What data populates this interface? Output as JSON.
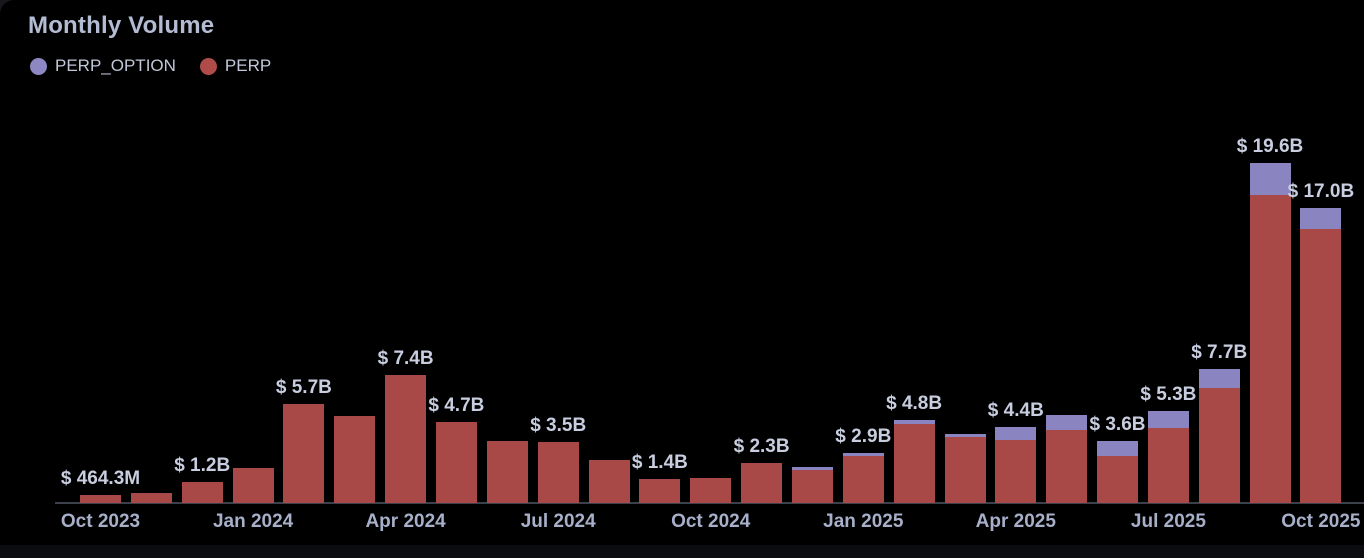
{
  "header": {
    "title": "Monthly Volume"
  },
  "legend": {
    "items": [
      {
        "label": "PERP_OPTION",
        "color": "#8d87c4"
      },
      {
        "label": "PERP",
        "color": "#af4c4a"
      }
    ]
  },
  "chart_data": {
    "type": "bar",
    "stacked": true,
    "title": "Monthly Volume",
    "value_unit": "USD (values in billions)",
    "categories": [
      "Oct 2023",
      "Nov 2023",
      "Dec 2023",
      "Jan 2024",
      "Feb 2024",
      "Mar 2024",
      "Apr 2024",
      "May 2024",
      "Jun 2024",
      "Jul 2024",
      "Aug 2024",
      "Sep 2024",
      "Oct 2024",
      "Nov 2024",
      "Dec 2024",
      "Jan 2025",
      "Feb 2025",
      "Mar 2025",
      "Apr 2025",
      "May 2025",
      "Jun 2025",
      "Jul 2025",
      "Aug 2025",
      "Sep 2025",
      "Oct 2025"
    ],
    "series": [
      {
        "name": "PERP_OPTION",
        "color": "#8a84c1",
        "values": [
          0,
          0,
          0,
          0,
          0,
          0,
          0,
          0,
          0,
          0,
          0,
          0,
          0,
          0,
          0.15,
          0.2,
          0.25,
          0.2,
          0.75,
          0.9,
          0.9,
          1.0,
          1.1,
          1.85,
          1.2
        ]
      },
      {
        "name": "PERP",
        "color": "#a84947",
        "values": [
          0.4643,
          0.6,
          1.2,
          2.0,
          5.7,
          5.0,
          7.4,
          4.7,
          3.6,
          3.5,
          2.5,
          1.4,
          1.45,
          2.3,
          1.9,
          2.7,
          4.55,
          3.8,
          3.65,
          4.2,
          2.7,
          4.3,
          6.6,
          17.75,
          15.8
        ]
      }
    ],
    "totals_billions": [
      0.4643,
      0.6,
      1.2,
      2.0,
      5.7,
      5.0,
      7.4,
      4.7,
      3.6,
      3.5,
      2.5,
      1.4,
      1.45,
      2.3,
      2.05,
      2.9,
      4.8,
      4.0,
      4.4,
      5.1,
      3.6,
      5.3,
      7.7,
      19.6,
      17.0
    ],
    "bar_labels": [
      "$ 464.3M",
      null,
      "$ 1.2B",
      null,
      "$ 5.7B",
      null,
      "$ 7.4B",
      "$ 4.7B",
      null,
      "$ 3.5B",
      null,
      "$ 1.4B",
      null,
      "$ 2.3B",
      null,
      "$ 2.9B",
      "$ 4.8B",
      null,
      "$ 4.4B",
      null,
      "$ 3.6B",
      "$ 5.3B",
      "$ 7.7B",
      "$ 19.6B",
      "$ 17.0B"
    ],
    "x_tick_every": 3,
    "x_tick_labels": [
      "Oct 2023",
      "Jan 2024",
      "Apr 2024",
      "Jul 2024",
      "Oct 2024",
      "Jan 2025",
      "Apr 2025",
      "Jul 2025",
      "Oct 2025"
    ],
    "ylim": [
      0,
      20.5
    ],
    "grid": false,
    "legend_position": "top-left"
  },
  "colors": {
    "page_background": "#17181c",
    "card_background": "#000000",
    "title_text": "#b4bcd4",
    "legend_text": "#c2c8d8",
    "value_label_text": "#c8cedf",
    "axis_label_text": "#a7afc9",
    "axis_line": "#3c404a"
  }
}
